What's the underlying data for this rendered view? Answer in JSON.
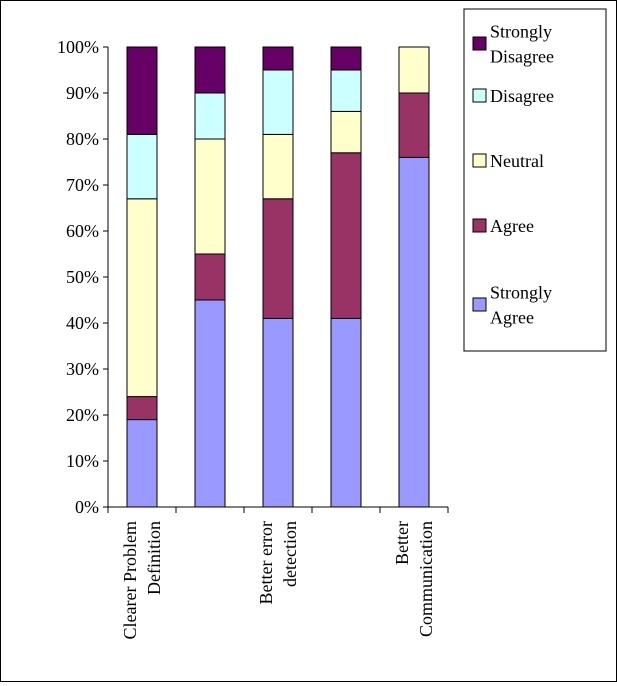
{
  "chart_data": {
    "type": "bar",
    "stacked": true,
    "percent_axis": true,
    "categories": [
      [
        "Clearer Problem",
        "Definition"
      ],
      [
        "",
        ""
      ],
      [
        "Better error",
        "detection"
      ],
      [
        "",
        ""
      ],
      [
        "Better",
        "Communication"
      ]
    ],
    "y_ticks": [
      "0%",
      "10%",
      "20%",
      "30%",
      "40%",
      "50%",
      "60%",
      "70%",
      "80%",
      "90%",
      "100%"
    ],
    "ylim": [
      0,
      100
    ],
    "grid": false,
    "legend_position": "top-right",
    "series": [
      {
        "name": [
          "Strongly",
          "Agree"
        ],
        "color": "#9999ff",
        "values": [
          19,
          45,
          41,
          41,
          76
        ]
      },
      {
        "name": [
          "Agree"
        ],
        "color": "#993366",
        "values": [
          5,
          10,
          26,
          36,
          14
        ]
      },
      {
        "name": [
          "Neutral"
        ],
        "color": "#ffffcc",
        "values": [
          43,
          25,
          14,
          9,
          10
        ]
      },
      {
        "name": [
          "Disagree"
        ],
        "color": "#ccffff",
        "values": [
          14,
          10,
          14,
          9,
          0
        ]
      },
      {
        "name": [
          "Strongly",
          "Disagree"
        ],
        "color": "#660066",
        "values": [
          19,
          10,
          5,
          5,
          0
        ]
      }
    ]
  }
}
